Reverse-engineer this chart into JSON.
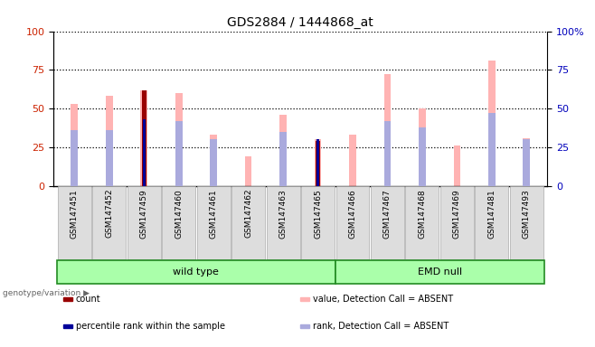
{
  "title": "GDS2884 / 1444868_at",
  "samples": [
    "GSM147451",
    "GSM147452",
    "GSM147459",
    "GSM147460",
    "GSM147461",
    "GSM147462",
    "GSM147463",
    "GSM147465",
    "GSM147466",
    "GSM147467",
    "GSM147468",
    "GSM147469",
    "GSM147481",
    "GSM147493"
  ],
  "pink_bars": [
    53,
    58,
    62,
    60,
    33,
    19,
    46,
    30,
    33,
    72,
    50,
    26,
    81,
    31
  ],
  "lightblue_bars": [
    36,
    36,
    0,
    42,
    30,
    0,
    35,
    0,
    0,
    42,
    38,
    0,
    47,
    30
  ],
  "red_bars": [
    0,
    0,
    62,
    0,
    0,
    0,
    0,
    29,
    0,
    0,
    0,
    0,
    0,
    0
  ],
  "blue_bars": [
    0,
    0,
    43,
    0,
    0,
    0,
    0,
    30,
    0,
    0,
    0,
    0,
    0,
    0
  ],
  "ylim": [
    0,
    100
  ],
  "pink_color": "#FFB3B3",
  "lightblue_color": "#AAAADD",
  "red_color": "#990000",
  "blue_color": "#000099",
  "wild_type_indices": [
    0,
    7
  ],
  "emd_null_indices": [
    8,
    13
  ],
  "group_fill": "#AAFFAA",
  "group_edge": "#228B22",
  "ytick_left_color": "#CC2200",
  "ytick_right_color": "#0000BB",
  "legend": [
    {
      "label": "count",
      "color": "#990000"
    },
    {
      "label": "percentile rank within the sample",
      "color": "#000099"
    },
    {
      "label": "value, Detection Call = ABSENT",
      "color": "#FFB3B3"
    },
    {
      "label": "rank, Detection Call = ABSENT",
      "color": "#AAAADD"
    }
  ]
}
